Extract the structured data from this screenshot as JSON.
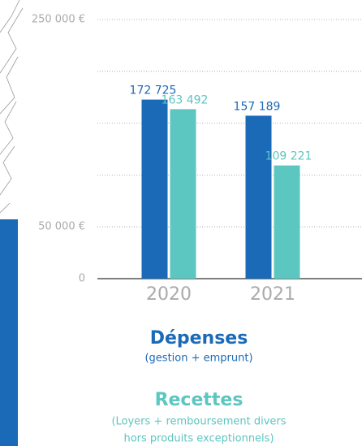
{
  "chart_data": {
    "type": "bar",
    "categories": [
      "2020",
      "2021"
    ],
    "series": [
      {
        "name": "Dépenses",
        "color": "#1b6ab7",
        "values": [
          172725,
          157189
        ],
        "value_labels": [
          "172 725",
          "157 189"
        ]
      },
      {
        "name": "Recettes",
        "color": "#5cc6c0",
        "values": [
          163492,
          109221
        ],
        "value_labels": [
          "163 492",
          "109 221"
        ]
      }
    ],
    "legend_notes": [
      "(gestion + emprunt)",
      "(Loyers + remboursement divers",
      "hors produits exceptionnels)"
    ],
    "ylim": [
      0,
      250000
    ],
    "yticks": [
      0,
      {
        "value": 50000,
        "label": "50 000 €"
      },
      {
        "value": 250000,
        "label": "250 000 €"
      }
    ],
    "gridlines": [
      50000,
      100000,
      150000,
      200000,
      250000
    ],
    "grid": true
  }
}
